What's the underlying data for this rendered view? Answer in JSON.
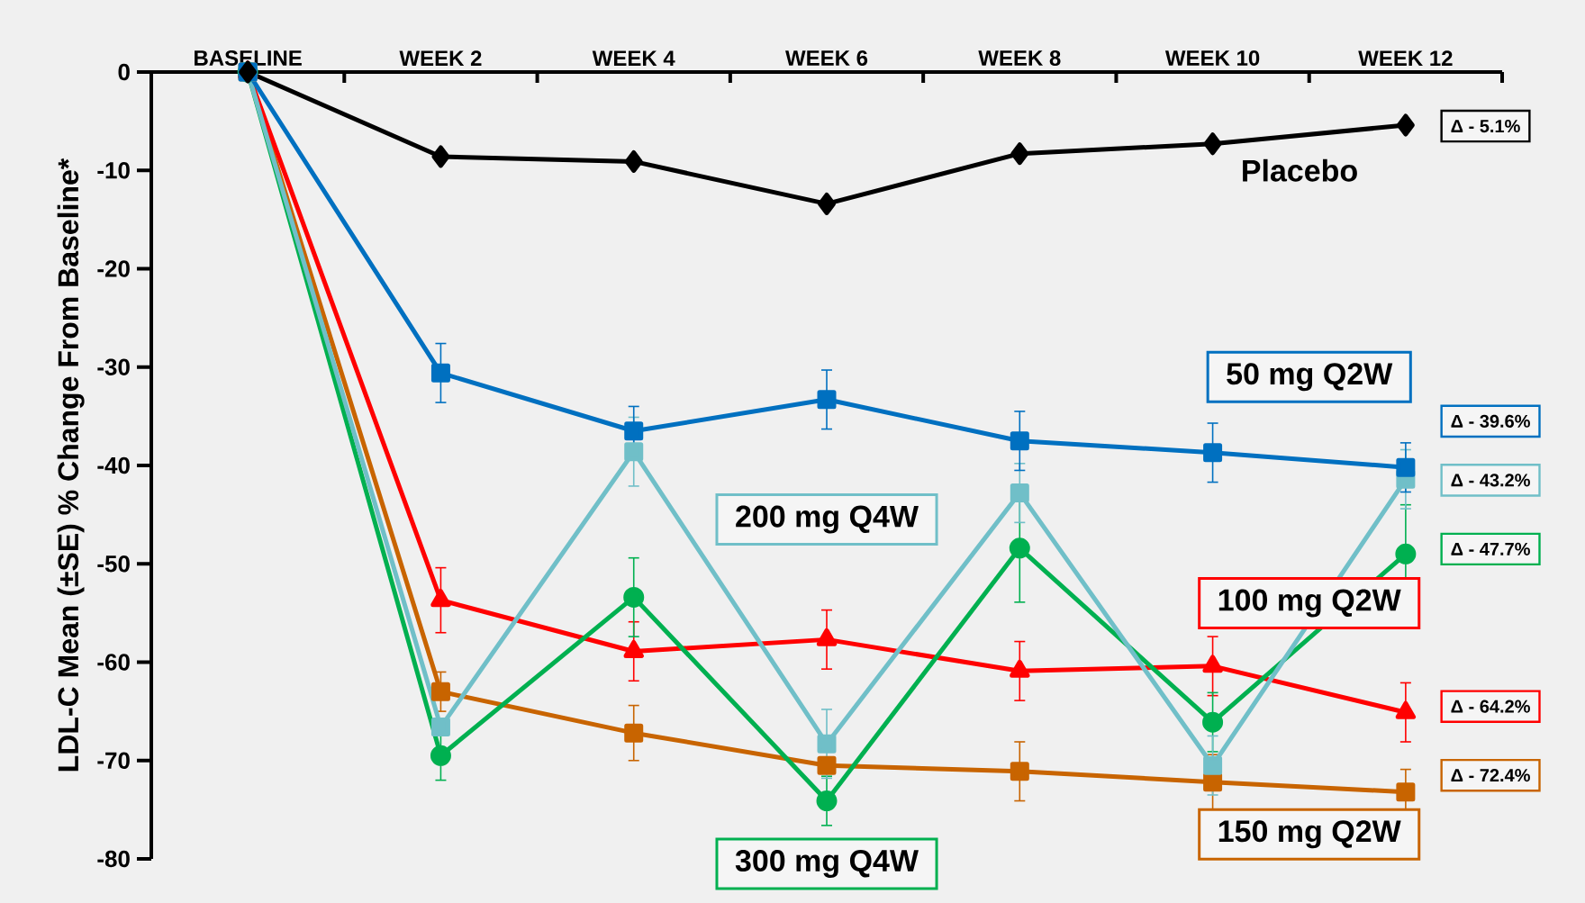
{
  "chart_data": {
    "type": "line",
    "ylabel": "LDL-C Mean (±SE) % Change From Baseline*",
    "categories": [
      "BASELINE",
      "WEEK 2",
      "WEEK 4",
      "WEEK 6",
      "WEEK 8",
      "WEEK 10",
      "WEEK 12"
    ],
    "ylim": [
      -80,
      0
    ],
    "yticks": [
      0,
      -10,
      -20,
      -30,
      -40,
      -50,
      -60,
      -70,
      -80
    ],
    "line_style": "solid",
    "series": [
      {
        "name": "Placebo",
        "color": "#000000",
        "marker": "diamond",
        "values": [
          0,
          -8.6,
          -9.1,
          -13.4,
          -8.3,
          -7.3,
          -5.4
        ]
      },
      {
        "name": "50 mg Q2W",
        "color": "#0070c0",
        "marker": "square",
        "values": [
          0,
          -30.6,
          -36.5,
          -33.3,
          -37.5,
          -38.7,
          -40.2
        ],
        "errors": [
          null,
          3,
          2.5,
          3,
          3,
          3,
          2.5
        ]
      },
      {
        "name": "200 mg Q4W",
        "color": "#70bfc8",
        "marker": "square",
        "values": [
          0,
          -66.6,
          -38.6,
          -68.3,
          -42.8,
          -70.5,
          -41.4
        ],
        "errors": [
          null,
          null,
          3.5,
          3.5,
          3,
          3,
          3
        ]
      },
      {
        "name": "300 mg Q4W",
        "color": "#00b050",
        "marker": "circle",
        "values": [
          0,
          -69.5,
          -53.4,
          -74.1,
          -48.4,
          -66.1,
          -49.0
        ],
        "errors": [
          null,
          2.5,
          4,
          2.5,
          5.5,
          3,
          5
        ]
      },
      {
        "name": "100 mg Q2W",
        "color": "#ff0000",
        "marker": "triangle",
        "values": [
          0,
          -53.7,
          -58.9,
          -57.7,
          -60.9,
          -60.4,
          -65.1
        ],
        "errors": [
          null,
          3.3,
          3,
          3,
          3,
          3,
          3
        ]
      },
      {
        "name": "150 mg Q2W",
        "color": "#c86400",
        "marker": "square",
        "values": [
          0,
          -63.0,
          -67.2,
          -70.5,
          -71.1,
          -72.2,
          -73.2
        ],
        "errors": [
          null,
          2,
          2.8,
          null,
          3,
          2.8,
          2.3
        ]
      }
    ],
    "annotations": [
      "Δ - 5.1%",
      "Δ - 39.6%",
      "Δ - 43.2%",
      "Δ - 47.7%",
      "Δ - 64.2%",
      "Δ - 72.4%"
    ]
  }
}
